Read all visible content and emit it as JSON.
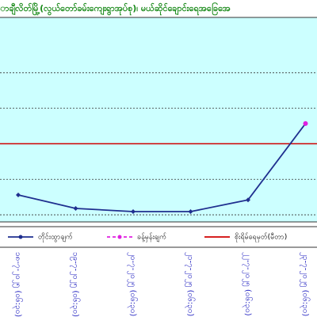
{
  "chart_data": {
    "type": "line",
    "title": "ာချီလိတ်မြို့(လွယ်တော်ခမ်းကျေးရွာအုပ်စု)၊ မယ်ဆိုင်ချောင်းရေအခြေအေ",
    "categories": [
      "၁၈-၇-၂၀၂၅ (၀၆:၃၀)",
      "၁၉-၇-၂၀၂၅ (၀၆:၃၀)",
      "၂၀-၇-၂၀၂၅ (၀၆:၃၀)",
      "၂၁-၇-၂၀၂၅ (၀၆:၃၀)",
      "၂၂-၇-၂၀၂၅ (၀၆:၃၀)",
      "၂၃-၇-၂၀၂၅ (၀၆:၃၀)"
    ],
    "series": [
      {
        "name": "တိုင်းထွာချက်",
        "color": "#1f2f8f",
        "values": [
          0.56,
          0.18,
          0.09,
          0.09,
          0.42,
          2.57
        ]
      },
      {
        "name": "ခန့်မှန်းချက်",
        "color": "#e020e0",
        "values": [
          null,
          null,
          null,
          null,
          null,
          2.57
        ]
      }
    ],
    "danger": {
      "name": "စိုးရိမ်ရေမှတ်(မီတာ)",
      "color": "#d00000",
      "value": 2
    },
    "ylim": [
      -0.2,
      5
    ],
    "yticks": [
      0,
      1,
      3,
      4
    ],
    "grid": true
  }
}
